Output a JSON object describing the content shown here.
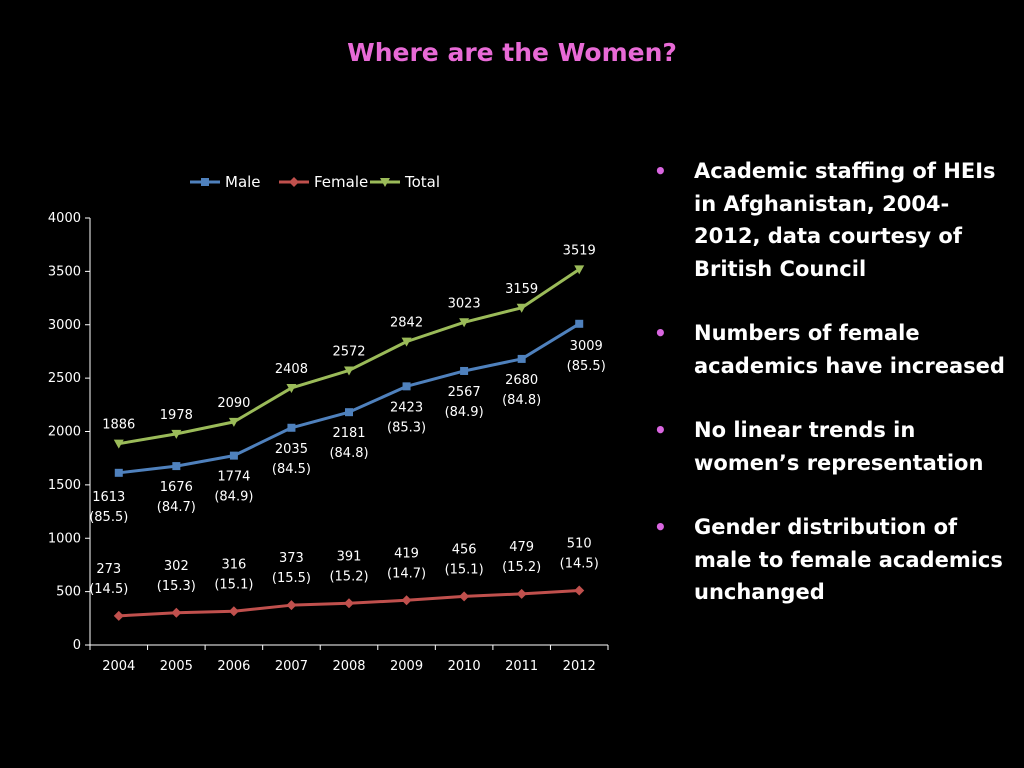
{
  "slide": {
    "title": "Where are the Women?",
    "title_color": "#e86ad6",
    "bullet_color": "#d966e0",
    "bullets": [
      "Academic staffing of HEIs in Afghanistan, 2004-2012, data courtesy of British Council",
      "Numbers of female academics have increased",
      "No linear trends in women’s representation",
      "Gender distribution of male to female academics unchanged"
    ]
  },
  "chart_data": {
    "type": "line",
    "title": "",
    "xlabel": "",
    "ylabel": "",
    "categories": [
      "2004",
      "2005",
      "2006",
      "2007",
      "2008",
      "2009",
      "2010",
      "2011",
      "2012"
    ],
    "ylim": [
      0,
      4000
    ],
    "yticks": [
      0,
      500,
      1000,
      1500,
      2000,
      2500,
      3000,
      3500,
      4000
    ],
    "grid": false,
    "legend_position": "top",
    "series": [
      {
        "name": "Male",
        "color": "#4f81bd",
        "marker": "square",
        "values": [
          1613,
          1676,
          1774,
          2035,
          2181,
          2423,
          2567,
          2680,
          3009
        ],
        "percent_labels": [
          "(85.5)",
          "(84.7)",
          "(84.9)",
          "(84.5)",
          "(84.8)",
          "(85.3)",
          "(84.9)",
          "(84.8)",
          "(85.5)"
        ]
      },
      {
        "name": "Female",
        "color": "#c0504d",
        "marker": "diamond",
        "values": [
          273,
          302,
          316,
          373,
          391,
          419,
          456,
          479,
          510
        ],
        "percent_labels": [
          "(14.5)",
          "(15.3)",
          "(15.1)",
          "(15.5)",
          "(15.2)",
          "(14.7)",
          "(15.1)",
          "(15.2)",
          "(14.5)"
        ]
      },
      {
        "name": "Total",
        "color": "#9bbb59",
        "marker": "triangle-down",
        "values": [
          1886,
          1978,
          2090,
          2408,
          2572,
          2842,
          3023,
          3159,
          3519
        ]
      }
    ]
  }
}
